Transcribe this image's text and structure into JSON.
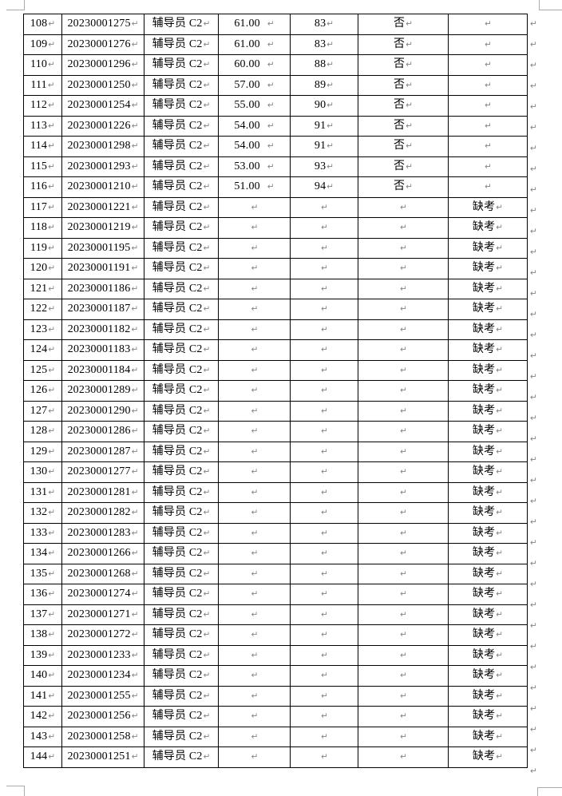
{
  "document": {
    "paragraph_mark": "↵",
    "colors": {
      "background": "#ffffff",
      "table_border": "#000000",
      "text": "#000000",
      "paragraph_mark": "#858585",
      "margin_mark": "#ababab"
    },
    "table": {
      "position_label_all_rows": "辅导员 C2",
      "interview_no_label": "否",
      "absent_label": "缺考",
      "rows": [
        {
          "no": "108",
          "id": "20230001275",
          "position": "辅导员 C2",
          "score": "61.00",
          "rank": "83",
          "interview": "否",
          "note": ""
        },
        {
          "no": "109",
          "id": "20230001276",
          "position": "辅导员 C2",
          "score": "61.00",
          "rank": "83",
          "interview": "否",
          "note": ""
        },
        {
          "no": "110",
          "id": "20230001296",
          "position": "辅导员 C2",
          "score": "60.00",
          "rank": "88",
          "interview": "否",
          "note": ""
        },
        {
          "no": "111",
          "id": "20230001250",
          "position": "辅导员 C2",
          "score": "57.00",
          "rank": "89",
          "interview": "否",
          "note": ""
        },
        {
          "no": "112",
          "id": "20230001254",
          "position": "辅导员 C2",
          "score": "55.00",
          "rank": "90",
          "interview": "否",
          "note": ""
        },
        {
          "no": "113",
          "id": "20230001226",
          "position": "辅导员 C2",
          "score": "54.00",
          "rank": "91",
          "interview": "否",
          "note": ""
        },
        {
          "no": "114",
          "id": "20230001298",
          "position": "辅导员 C2",
          "score": "54.00",
          "rank": "91",
          "interview": "否",
          "note": ""
        },
        {
          "no": "115",
          "id": "20230001293",
          "position": "辅导员 C2",
          "score": "53.00",
          "rank": "93",
          "interview": "否",
          "note": ""
        },
        {
          "no": "116",
          "id": "20230001210",
          "position": "辅导员 C2",
          "score": "51.00",
          "rank": "94",
          "interview": "否",
          "note": ""
        },
        {
          "no": "117",
          "id": "20230001221",
          "position": "辅导员 C2",
          "score": "",
          "rank": "",
          "interview": "",
          "note": "缺考"
        },
        {
          "no": "118",
          "id": "20230001219",
          "position": "辅导员 C2",
          "score": "",
          "rank": "",
          "interview": "",
          "note": "缺考"
        },
        {
          "no": "119",
          "id": "20230001195",
          "position": "辅导员 C2",
          "score": "",
          "rank": "",
          "interview": "",
          "note": "缺考"
        },
        {
          "no": "120",
          "id": "20230001191",
          "position": "辅导员 C2",
          "score": "",
          "rank": "",
          "interview": "",
          "note": "缺考"
        },
        {
          "no": "121",
          "id": "20230001186",
          "position": "辅导员 C2",
          "score": "",
          "rank": "",
          "interview": "",
          "note": "缺考"
        },
        {
          "no": "122",
          "id": "20230001187",
          "position": "辅导员 C2",
          "score": "",
          "rank": "",
          "interview": "",
          "note": "缺考"
        },
        {
          "no": "123",
          "id": "20230001182",
          "position": "辅导员 C2",
          "score": "",
          "rank": "",
          "interview": "",
          "note": "缺考"
        },
        {
          "no": "124",
          "id": "20230001183",
          "position": "辅导员 C2",
          "score": "",
          "rank": "",
          "interview": "",
          "note": "缺考"
        },
        {
          "no": "125",
          "id": "20230001184",
          "position": "辅导员 C2",
          "score": "",
          "rank": "",
          "interview": "",
          "note": "缺考"
        },
        {
          "no": "126",
          "id": "20230001289",
          "position": "辅导员 C2",
          "score": "",
          "rank": "",
          "interview": "",
          "note": "缺考"
        },
        {
          "no": "127",
          "id": "20230001290",
          "position": "辅导员 C2",
          "score": "",
          "rank": "",
          "interview": "",
          "note": "缺考"
        },
        {
          "no": "128",
          "id": "20230001286",
          "position": "辅导员 C2",
          "score": "",
          "rank": "",
          "interview": "",
          "note": "缺考"
        },
        {
          "no": "129",
          "id": "20230001287",
          "position": "辅导员 C2",
          "score": "",
          "rank": "",
          "interview": "",
          "note": "缺考"
        },
        {
          "no": "130",
          "id": "20230001277",
          "position": "辅导员 C2",
          "score": "",
          "rank": "",
          "interview": "",
          "note": "缺考"
        },
        {
          "no": "131",
          "id": "20230001281",
          "position": "辅导员 C2",
          "score": "",
          "rank": "",
          "interview": "",
          "note": "缺考"
        },
        {
          "no": "132",
          "id": "20230001282",
          "position": "辅导员 C2",
          "score": "",
          "rank": "",
          "interview": "",
          "note": "缺考"
        },
        {
          "no": "133",
          "id": "20230001283",
          "position": "辅导员 C2",
          "score": "",
          "rank": "",
          "interview": "",
          "note": "缺考"
        },
        {
          "no": "134",
          "id": "20230001266",
          "position": "辅导员 C2",
          "score": "",
          "rank": "",
          "interview": "",
          "note": "缺考"
        },
        {
          "no": "135",
          "id": "20230001268",
          "position": "辅导员 C2",
          "score": "",
          "rank": "",
          "interview": "",
          "note": "缺考"
        },
        {
          "no": "136",
          "id": "20230001274",
          "position": "辅导员 C2",
          "score": "",
          "rank": "",
          "interview": "",
          "note": "缺考"
        },
        {
          "no": "137",
          "id": "20230001271",
          "position": "辅导员 C2",
          "score": "",
          "rank": "",
          "interview": "",
          "note": "缺考"
        },
        {
          "no": "138",
          "id": "20230001272",
          "position": "辅导员 C2",
          "score": "",
          "rank": "",
          "interview": "",
          "note": "缺考"
        },
        {
          "no": "139",
          "id": "20230001233",
          "position": "辅导员 C2",
          "score": "",
          "rank": "",
          "interview": "",
          "note": "缺考"
        },
        {
          "no": "140",
          "id": "20230001234",
          "position": "辅导员 C2",
          "score": "",
          "rank": "",
          "interview": "",
          "note": "缺考"
        },
        {
          "no": "141",
          "id": "20230001255",
          "position": "辅导员 C2",
          "score": "",
          "rank": "",
          "interview": "",
          "note": "缺考"
        },
        {
          "no": "142",
          "id": "20230001256",
          "position": "辅导员 C2",
          "score": "",
          "rank": "",
          "interview": "",
          "note": "缺考"
        },
        {
          "no": "143",
          "id": "20230001258",
          "position": "辅导员 C2",
          "score": "",
          "rank": "",
          "interview": "",
          "note": "缺考"
        },
        {
          "no": "144",
          "id": "20230001251",
          "position": "辅导员 C2",
          "score": "",
          "rank": "",
          "interview": "",
          "note": "缺考"
        }
      ]
    }
  }
}
